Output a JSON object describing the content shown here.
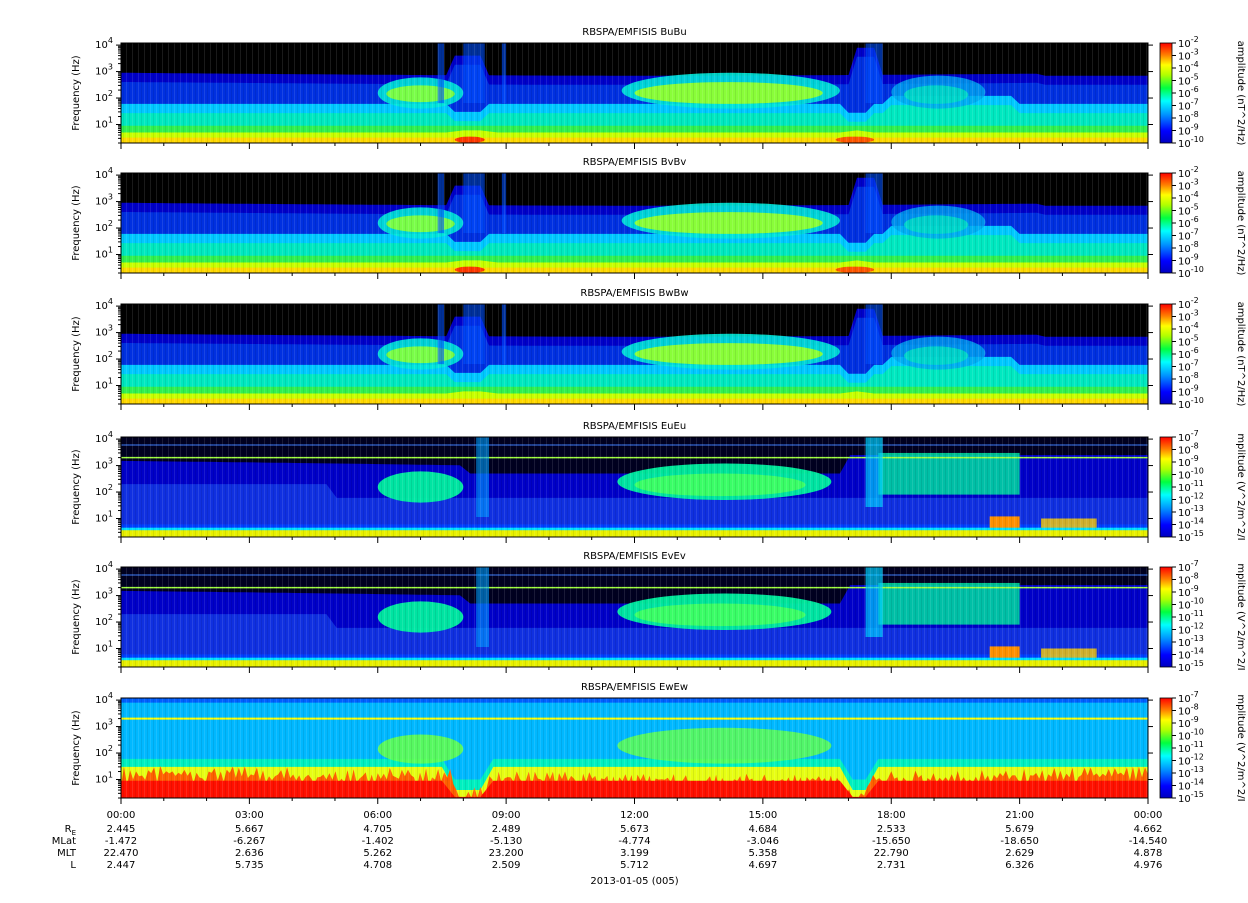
{
  "chart_data": {
    "type": "heatmap",
    "xlabel": "2013-01-05 (005)",
    "x_ticks": [
      "00:00",
      "03:00",
      "06:00",
      "09:00",
      "12:00",
      "15:00",
      "18:00",
      "21:00",
      "00:00"
    ],
    "xlim_hours": [
      0,
      24
    ],
    "y_ticks": [
      "10^1",
      "10^2",
      "10^3",
      "10^4"
    ],
    "y_scale": "log",
    "ylim_hz": [
      2,
      12000
    ],
    "grid": false,
    "ephemeris": {
      "labels": [
        "R_E",
        "MLat",
        "MLT",
        "L"
      ],
      "rows": [
        [
          "2.445",
          "5.667",
          "4.705",
          "2.489",
          "5.673",
          "4.684",
          "2.533",
          "5.679",
          "4.662"
        ],
        [
          "-1.472",
          "-6.267",
          "-1.402",
          "-5.130",
          "-4.774",
          "-3.046",
          "-15.650",
          "-18.650",
          "-14.540"
        ],
        [
          "22.470",
          "2.636",
          "5.262",
          "23.200",
          "3.199",
          "5.358",
          "22.790",
          "2.629",
          "4.878"
        ],
        [
          "2.447",
          "5.735",
          "4.708",
          "2.509",
          "5.712",
          "4.697",
          "2.731",
          "6.326",
          "4.976"
        ]
      ]
    },
    "panels": [
      {
        "title": "RBSPA/EMFISIS  BuBu",
        "ylabel": "Frequency (Hz)",
        "cbar_label": "amplitude (nT^2/Hz)",
        "cbar_ticks": [
          "-2",
          "-3",
          "-4",
          "-5",
          "-6",
          "-7",
          "-8",
          "-9",
          "-10"
        ],
        "cbar_range": [
          -10,
          -2
        ],
        "kind": "B"
      },
      {
        "title": "RBSPA/EMFISIS  BvBv",
        "ylabel": "Frequency (Hz)",
        "cbar_label": "amplitude (nT^2/Hz)",
        "cbar_ticks": [
          "-2",
          "-3",
          "-4",
          "-5",
          "-6",
          "-7",
          "-8",
          "-9",
          "-10"
        ],
        "cbar_range": [
          -10,
          -2
        ],
        "kind": "B"
      },
      {
        "title": "RBSPA/EMFISIS  BwBw",
        "ylabel": "Frequency (Hz)",
        "cbar_label": "amplitude (nT^2/Hz)",
        "cbar_ticks": [
          "-2",
          "-3",
          "-4",
          "-5",
          "-6",
          "-7",
          "-8",
          "-9",
          "-10"
        ],
        "cbar_range": [
          -10,
          -2
        ],
        "kind": "B3"
      },
      {
        "title": "RBSPA/EMFISIS  EuEu",
        "ylabel": "Frequency (Hz)",
        "cbar_label": "mplitude (V^2/m^2/I",
        "cbar_ticks": [
          "-7",
          "-8",
          "-9",
          "-10",
          "-11",
          "-12",
          "-13",
          "-14",
          "-15"
        ],
        "cbar_range": [
          -15,
          -7
        ],
        "kind": "E"
      },
      {
        "title": "RBSPA/EMFISIS  EvEv",
        "ylabel": "Frequency (Hz)",
        "cbar_label": "mplitude (V^2/m^2/I",
        "cbar_ticks": [
          "-7",
          "-8",
          "-9",
          "-10",
          "-11",
          "-12",
          "-13",
          "-14",
          "-15"
        ],
        "cbar_range": [
          -15,
          -7
        ],
        "kind": "E"
      },
      {
        "title": "RBSPA/EMFISIS  EwEw",
        "ylabel": "Frequency (Hz)",
        "cbar_label": "mplitude (V^2/m^2/I",
        "cbar_ticks": [
          "-7",
          "-8",
          "-9",
          "-10",
          "-11",
          "-12",
          "-13",
          "-14",
          "-15"
        ],
        "cbar_range": [
          -15,
          -7
        ],
        "kind": "Ew"
      }
    ]
  }
}
